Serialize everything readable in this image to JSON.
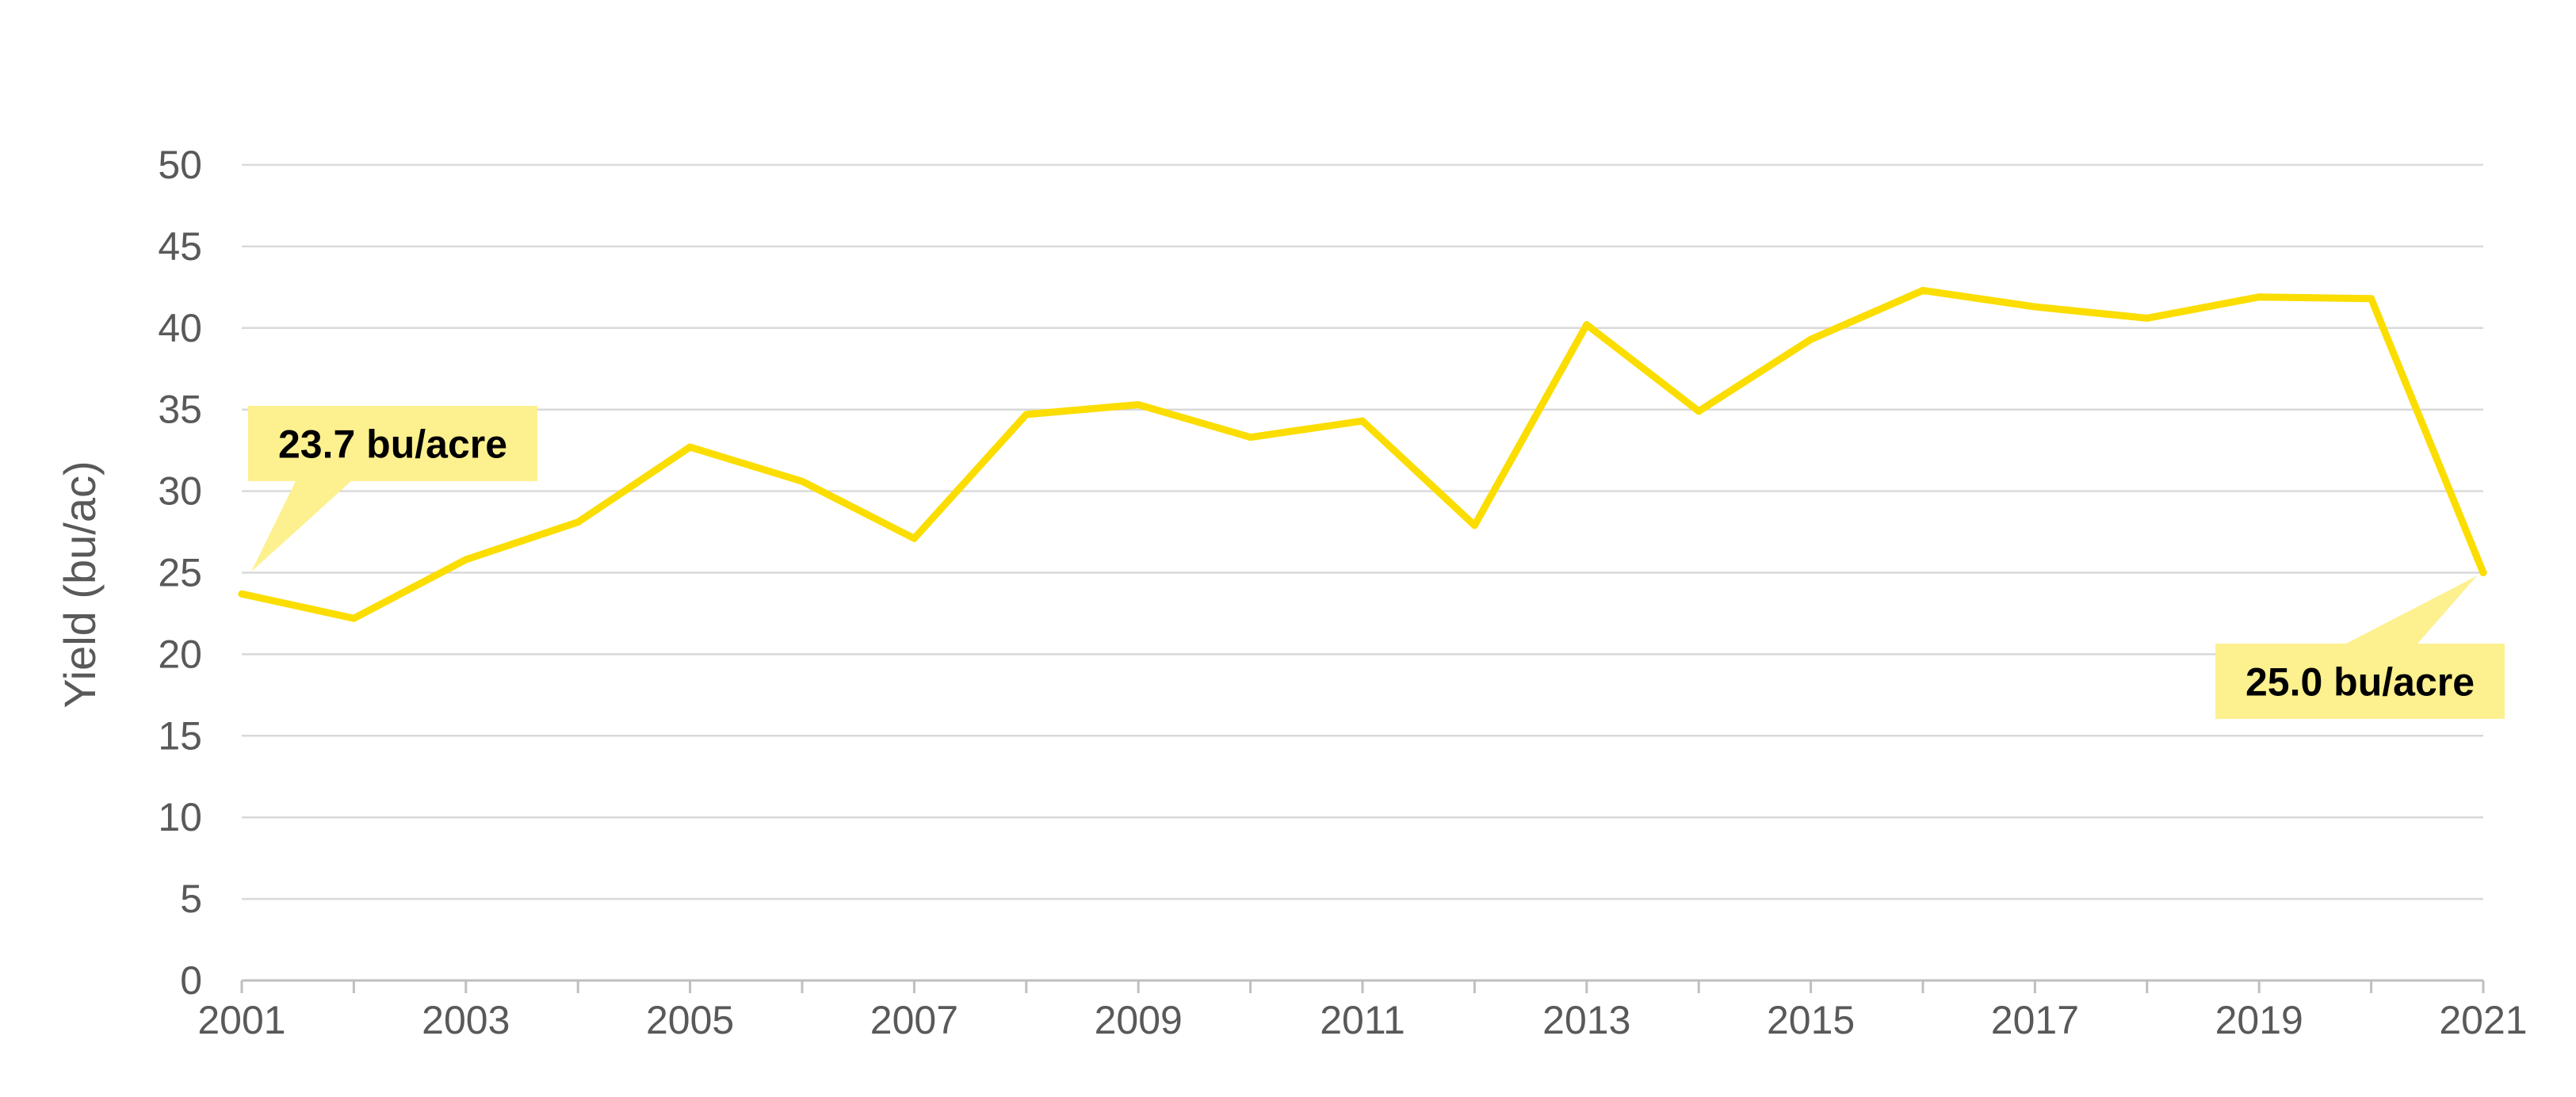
{
  "chart_data": {
    "type": "line",
    "ylabel": "Yield (bu/ac)",
    "xlabel": "",
    "ylim": [
      0,
      50
    ],
    "yticks": [
      "0",
      "5",
      "10",
      "15",
      "20",
      "25",
      "30",
      "35",
      "40",
      "45",
      "50"
    ],
    "xlim": [
      2001,
      2021
    ],
    "xtick_labels": [
      "2001",
      "2003",
      "2005",
      "2007",
      "2009",
      "2011",
      "2013",
      "2015",
      "2017",
      "2019",
      "2021"
    ],
    "grid": true,
    "legend": "none",
    "series": [
      {
        "color": "#fbdd00",
        "x": [
          2001,
          2002,
          2003,
          2004,
          2005,
          2006,
          2007,
          2008,
          2009,
          2010,
          2011,
          2012,
          2013,
          2014,
          2015,
          2016,
          2017,
          2018,
          2019,
          2020,
          2021
        ],
        "values": [
          23.7,
          22.2,
          25.8,
          28.1,
          32.7,
          30.6,
          27.1,
          34.7,
          35.3,
          33.3,
          34.3,
          27.9,
          40.2,
          34.9,
          39.3,
          42.3,
          41.3,
          40.6,
          41.9,
          41.8,
          25.0
        ]
      }
    ],
    "annotations": [
      {
        "text": "23.7 bu/acre",
        "x": 2001,
        "y": 23.7,
        "placement": "above-right"
      },
      {
        "text": "25.0 bu/acre",
        "x": 2021,
        "y": 25.0,
        "placement": "below-left"
      }
    ],
    "callout_color": "#fdf08f"
  }
}
